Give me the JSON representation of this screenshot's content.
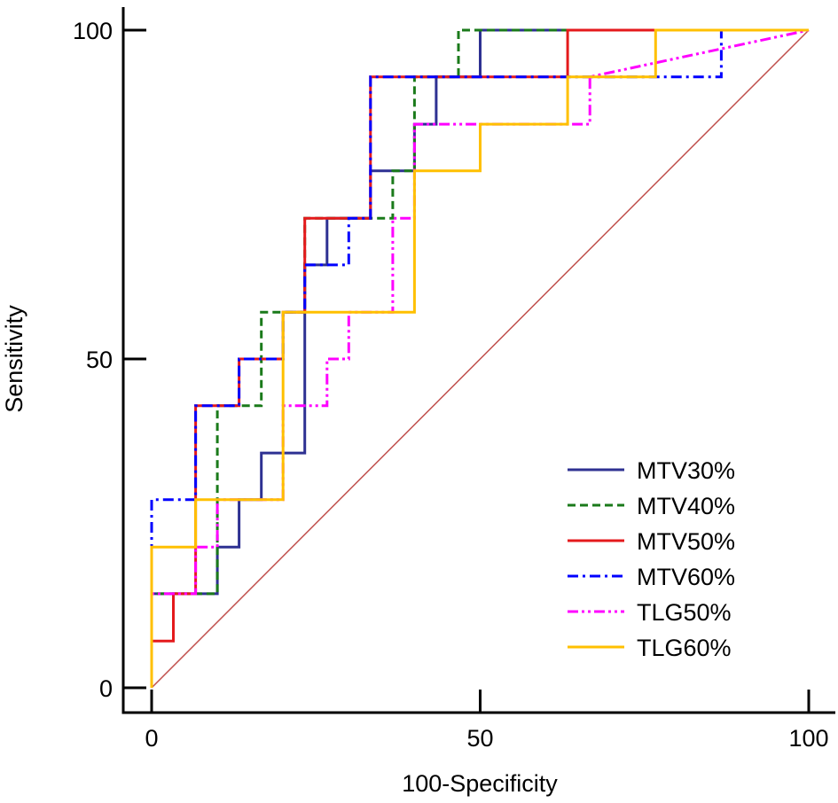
{
  "chart_data": {
    "type": "line",
    "title": "",
    "xlabel": "100-Specificity",
    "ylabel": "Sensitivity",
    "xlim": [
      0,
      100
    ],
    "ylim": [
      0,
      100
    ],
    "xticks": [
      0,
      50,
      100
    ],
    "yticks": [
      0,
      50,
      100
    ],
    "legend_position": "bottom-right",
    "reference_line": {
      "name": "reference-diagonal",
      "x": [
        0,
        100
      ],
      "y": [
        0,
        100
      ],
      "color": "#c0504d"
    },
    "series": [
      {
        "name": "MTV30%",
        "color": "#2e3192",
        "dash": "solid",
        "x": [
          0,
          0,
          6.7,
          6.7,
          10,
          10,
          13.3,
          13.3,
          16.7,
          16.7,
          23.3,
          23.3,
          26.7,
          26.7,
          33.3,
          33.3,
          40,
          40,
          43.3,
          43.3,
          50,
          50,
          100
        ],
        "y": [
          0,
          14.3,
          14.3,
          14.3,
          14.3,
          21.4,
          21.4,
          28.6,
          28.6,
          35.7,
          35.7,
          64.3,
          64.3,
          71.4,
          71.4,
          78.6,
          78.6,
          85.7,
          85.7,
          92.9,
          92.9,
          100,
          100
        ]
      },
      {
        "name": "MTV40%",
        "color": "#1a7a1a",
        "dash": "dashed",
        "x": [
          0,
          0,
          6.7,
          6.7,
          10,
          10,
          16.7,
          16.7,
          23.3,
          23.3,
          33.3,
          33.3,
          36.7,
          36.7,
          40,
          40,
          46.7,
          46.7,
          100
        ],
        "y": [
          0,
          14.3,
          14.3,
          14.3,
          14.3,
          42.9,
          42.9,
          57.1,
          57.1,
          71.4,
          71.4,
          71.4,
          71.4,
          78.6,
          78.6,
          92.9,
          92.9,
          100,
          100
        ]
      },
      {
        "name": "MTV50%",
        "color": "#e41a1c",
        "dash": "solid",
        "x": [
          0,
          0,
          3.3,
          3.3,
          6.7,
          6.7,
          13.3,
          13.3,
          20,
          20,
          23.3,
          23.3,
          33.3,
          33.3,
          63.3,
          63.3,
          100
        ],
        "y": [
          0,
          7.1,
          7.1,
          14.3,
          14.3,
          42.9,
          42.9,
          50,
          50,
          57.1,
          57.1,
          71.4,
          71.4,
          92.9,
          92.9,
          100,
          100
        ]
      },
      {
        "name": "MTV60%",
        "color": "#0000ff",
        "dash": "dashdot",
        "x": [
          0,
          0,
          6.7,
          6.7,
          13.3,
          13.3,
          20,
          20,
          23.3,
          23.3,
          30,
          30,
          33.3,
          33.3,
          86.7,
          86.7,
          100
        ],
        "y": [
          0,
          28.6,
          28.6,
          42.9,
          42.9,
          50,
          50,
          57.1,
          57.1,
          64.3,
          64.3,
          71.4,
          71.4,
          92.9,
          92.9,
          100,
          100
        ]
      },
      {
        "name": "TLG50%",
        "color": "#ff00ff",
        "dash": "dashdotdot",
        "x": [
          0,
          0,
          6.7,
          6.7,
          10,
          10,
          20,
          20,
          26.7,
          26.7,
          30,
          30,
          36.7,
          36.7,
          40,
          40,
          66.7,
          66.7,
          100
        ],
        "y": [
          0,
          14.3,
          14.3,
          21.4,
          21.4,
          28.6,
          28.6,
          42.9,
          42.9,
          50,
          50,
          57.1,
          57.1,
          71.4,
          71.4,
          85.7,
          85.7,
          92.9,
          100
        ]
      },
      {
        "name": "TLG60%",
        "color": "#ffc000",
        "dash": "solid",
        "x": [
          0,
          0,
          6.7,
          6.7,
          20,
          20,
          40,
          40,
          50,
          50,
          63.3,
          63.3,
          76.7,
          76.7,
          100
        ],
        "y": [
          0,
          21.4,
          21.4,
          28.6,
          28.6,
          57.1,
          57.1,
          78.6,
          78.6,
          85.7,
          85.7,
          92.9,
          92.9,
          100,
          100
        ]
      }
    ]
  }
}
